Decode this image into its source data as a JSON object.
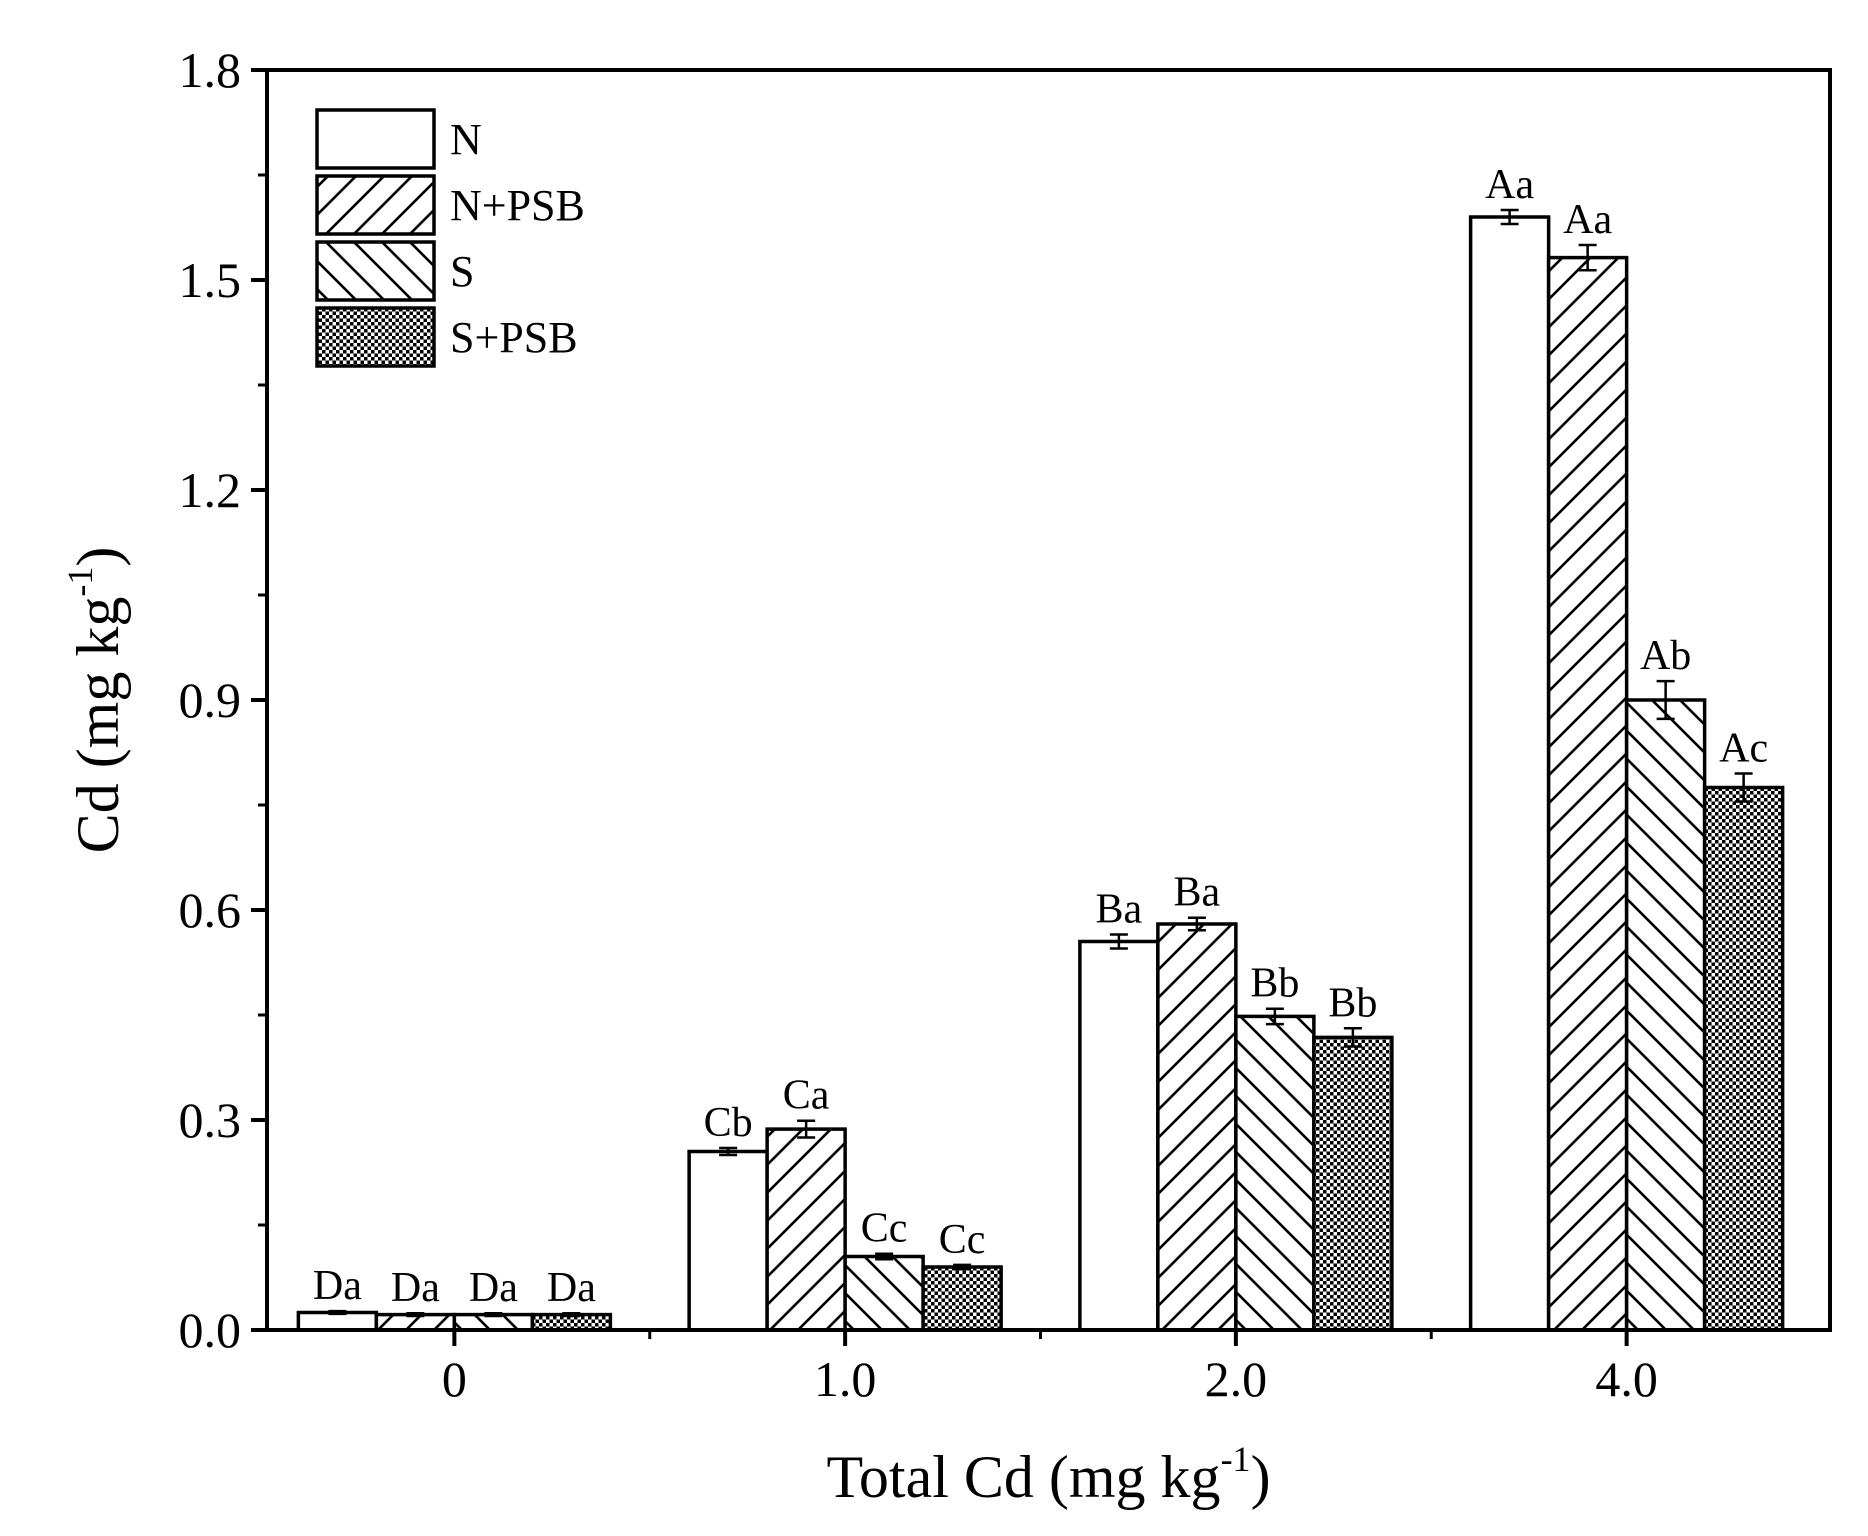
{
  "chart_data": {
    "type": "bar",
    "title": "",
    "xlabel": {
      "main": "Total Cd (mg kg",
      "sup": "-1",
      "close": ")"
    },
    "ylabel": {
      "main": "Cd (mg kg",
      "sup": "-1",
      "close": ")"
    },
    "ylim": [
      0,
      1.8
    ],
    "yticks": [
      "0.0",
      "0.3",
      "0.6",
      "0.9",
      "1.2",
      "1.5",
      "1.8"
    ],
    "ytick_values": [
      0,
      0.3,
      0.6,
      0.9,
      1.2,
      1.5,
      1.8
    ],
    "categories": [
      "0",
      "1.0",
      "2.0",
      "4.0"
    ],
    "legend_position": "top-left",
    "series": [
      {
        "name": "N",
        "pattern": "none",
        "values": [
          0.025,
          0.255,
          0.555,
          1.59
        ],
        "errors": [
          0.002,
          0.005,
          0.01,
          0.01
        ],
        "labels": [
          "Da",
          "Cb",
          "Ba",
          "Aa"
        ]
      },
      {
        "name": "N+PSB",
        "pattern": "diagonal-up",
        "values": [
          0.022,
          0.287,
          0.58,
          1.532
        ],
        "errors": [
          0.002,
          0.012,
          0.009,
          0.018
        ],
        "labels": [
          "Da",
          "Ca",
          "Ba",
          "Aa"
        ]
      },
      {
        "name": "S",
        "pattern": "diagonal-down",
        "values": [
          0.022,
          0.105,
          0.448,
          0.9
        ],
        "errors": [
          0.002,
          0.004,
          0.011,
          0.027
        ],
        "labels": [
          "Da",
          "Cc",
          "Bb",
          "Ab"
        ]
      },
      {
        "name": "S+PSB",
        "pattern": "checker",
        "values": [
          0.022,
          0.09,
          0.418,
          0.775
        ],
        "errors": [
          0.002,
          0.003,
          0.013,
          0.02
        ],
        "labels": [
          "Da",
          "Cc",
          "Bb",
          "Ac"
        ]
      }
    ],
    "colors": {
      "bar_fill": "#ffffff",
      "stroke": "#000000",
      "pattern_ink": "#000000"
    }
  }
}
